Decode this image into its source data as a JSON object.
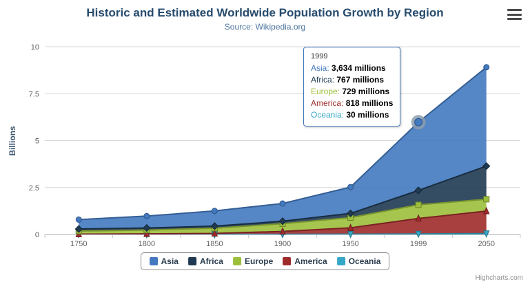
{
  "credits": "Highcharts.com",
  "chart_data": {
    "type": "area",
    "stacked": true,
    "title": "Historic and Estimated Worldwide Population Growth by Region",
    "subtitle": "Source: Wikipedia.org",
    "categories": [
      "1750",
      "1800",
      "1850",
      "1900",
      "1950",
      "1999",
      "2050"
    ],
    "series": [
      {
        "name": "Asia",
        "color": "#4379BF",
        "marker": "circle",
        "values": [
          502,
          635,
          809,
          947,
          1402,
          3634,
          5268
        ]
      },
      {
        "name": "Africa",
        "color": "#1F3A52",
        "marker": "diamond",
        "values": [
          106,
          107,
          111,
          133,
          221,
          767,
          1766
        ]
      },
      {
        "name": "Europe",
        "color": "#9CBF3B",
        "marker": "square",
        "values": [
          163,
          203,
          276,
          408,
          547,
          729,
          628
        ]
      },
      {
        "name": "America",
        "color": "#9E2B2B",
        "marker": "triangle",
        "values": [
          18,
          31,
          54,
          156,
          339,
          818,
          1201
        ]
      },
      {
        "name": "Oceania",
        "color": "#35A7C6",
        "marker": "triangle-down",
        "values": [
          2,
          2,
          2,
          6,
          13,
          30,
          46
        ]
      }
    ],
    "unit": "millions",
    "ylabel": "Billions",
    "yticks": [
      0,
      2.5,
      5,
      7.5,
      10
    ],
    "ylim": [
      0,
      10
    ],
    "grid": true,
    "legend_position": "bottom",
    "hover": {
      "category": "1999",
      "series": "Asia"
    }
  },
  "tooltip": {
    "header": "1999",
    "rows": [
      {
        "label": "Asia",
        "value": "3,634 millions"
      },
      {
        "label": "Africa",
        "value": "767 millions"
      },
      {
        "label": "Europe",
        "value": "729 millions"
      },
      {
        "label": "America",
        "value": "818 millions"
      },
      {
        "label": "Oceania",
        "value": "30 millions"
      }
    ]
  }
}
